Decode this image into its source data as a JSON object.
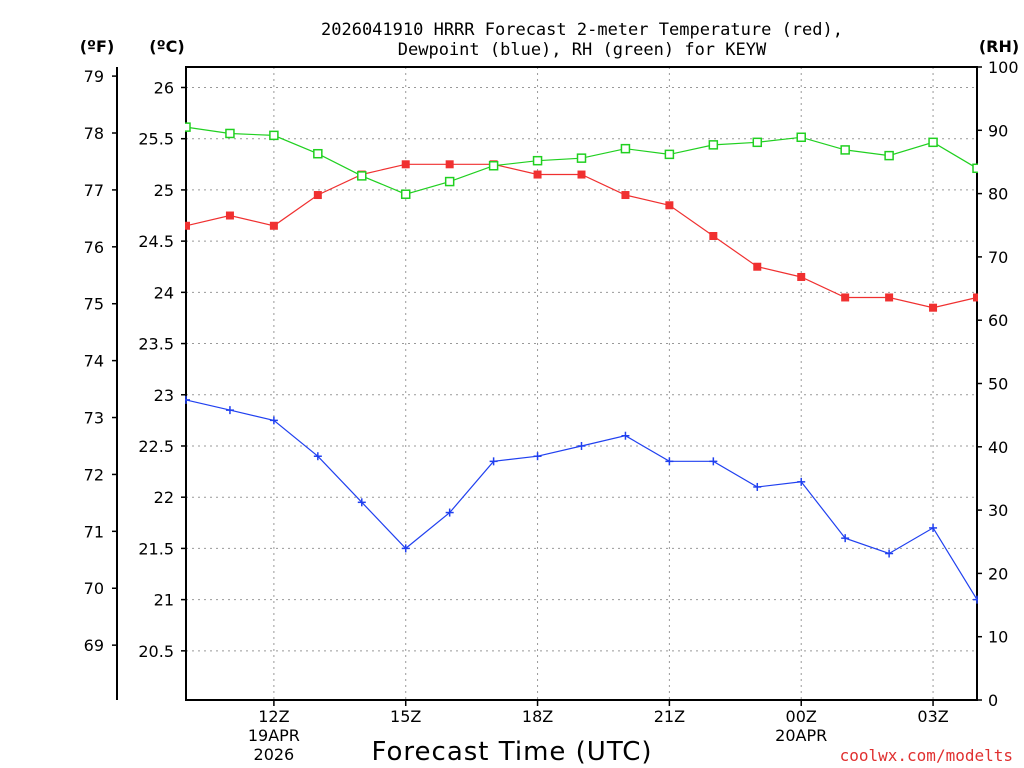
{
  "colors": {
    "temperature": "#f03030",
    "dewpoint": "#2040f0",
    "rh": "#20d020",
    "grid": "#999999",
    "credit": "#e03030"
  },
  "chart_data": {
    "type": "line",
    "title_line1": "2026041910 HRRR Forecast 2-meter Temperature (red),",
    "title_line2": "Dewpoint (blue), RH (green) for KEYW",
    "xlabel": "Forecast Time (UTC)",
    "credit": "coolwx.com/modelts",
    "axes": {
      "fahrenheit": {
        "unit_label": "(ºF)",
        "ticks": [
          69,
          70,
          71,
          72,
          73,
          74,
          75,
          76,
          77,
          78,
          79
        ]
      },
      "celsius": {
        "unit_label": "(ºC)",
        "range": [
          20.02,
          26.2
        ],
        "ticks": [
          "20.5",
          "21",
          "21.5",
          "22",
          "22.5",
          "23",
          "23.5",
          "24",
          "24.5",
          "25",
          "25.5",
          "26"
        ]
      },
      "rh": {
        "unit_label": "(RH)",
        "range": [
          0,
          100
        ],
        "ticks": [
          0,
          10,
          20,
          30,
          40,
          50,
          60,
          70,
          80,
          90,
          100
        ]
      }
    },
    "x_hours": [
      10,
      11,
      12,
      13,
      14,
      15,
      16,
      17,
      18,
      19,
      20,
      21,
      22,
      23,
      24,
      25,
      26,
      27,
      28
    ],
    "x_range": [
      10,
      28
    ],
    "x_ticks": [
      {
        "hour": 12,
        "label": "12Z",
        "sub1": "19APR",
        "sub2": "2026"
      },
      {
        "hour": 15,
        "label": "15Z",
        "sub1": "",
        "sub2": ""
      },
      {
        "hour": 18,
        "label": "18Z",
        "sub1": "",
        "sub2": ""
      },
      {
        "hour": 21,
        "label": "21Z",
        "sub1": "",
        "sub2": ""
      },
      {
        "hour": 24,
        "label": "00Z",
        "sub1": "20APR",
        "sub2": ""
      },
      {
        "hour": 27,
        "label": "03Z",
        "sub1": "",
        "sub2": ""
      }
    ],
    "series": [
      {
        "name": "Temperature",
        "unit": "C",
        "marker": "filled-square",
        "values": [
          24.65,
          24.75,
          24.65,
          24.95,
          25.15,
          25.25,
          25.25,
          25.25,
          25.15,
          25.15,
          24.95,
          24.85,
          24.55,
          24.25,
          24.15,
          23.95,
          23.95,
          23.85,
          23.95
        ]
      },
      {
        "name": "Dewpoint",
        "unit": "C",
        "marker": "plus",
        "values": [
          22.95,
          22.85,
          22.75,
          22.4,
          21.95,
          21.5,
          21.85,
          22.35,
          22.4,
          22.5,
          22.6,
          22.35,
          22.35,
          22.1,
          22.15,
          21.6,
          21.45,
          21.7,
          21.0
        ]
      },
      {
        "name": "RH",
        "unit": "%",
        "marker": "open-square",
        "values": [
          90.5,
          89.5,
          89.2,
          86.3,
          82.8,
          79.9,
          81.9,
          84.4,
          85.2,
          85.6,
          87.1,
          86.2,
          87.7,
          88.1,
          88.9,
          86.9,
          86.0,
          88.1,
          84.0
        ]
      }
    ]
  }
}
